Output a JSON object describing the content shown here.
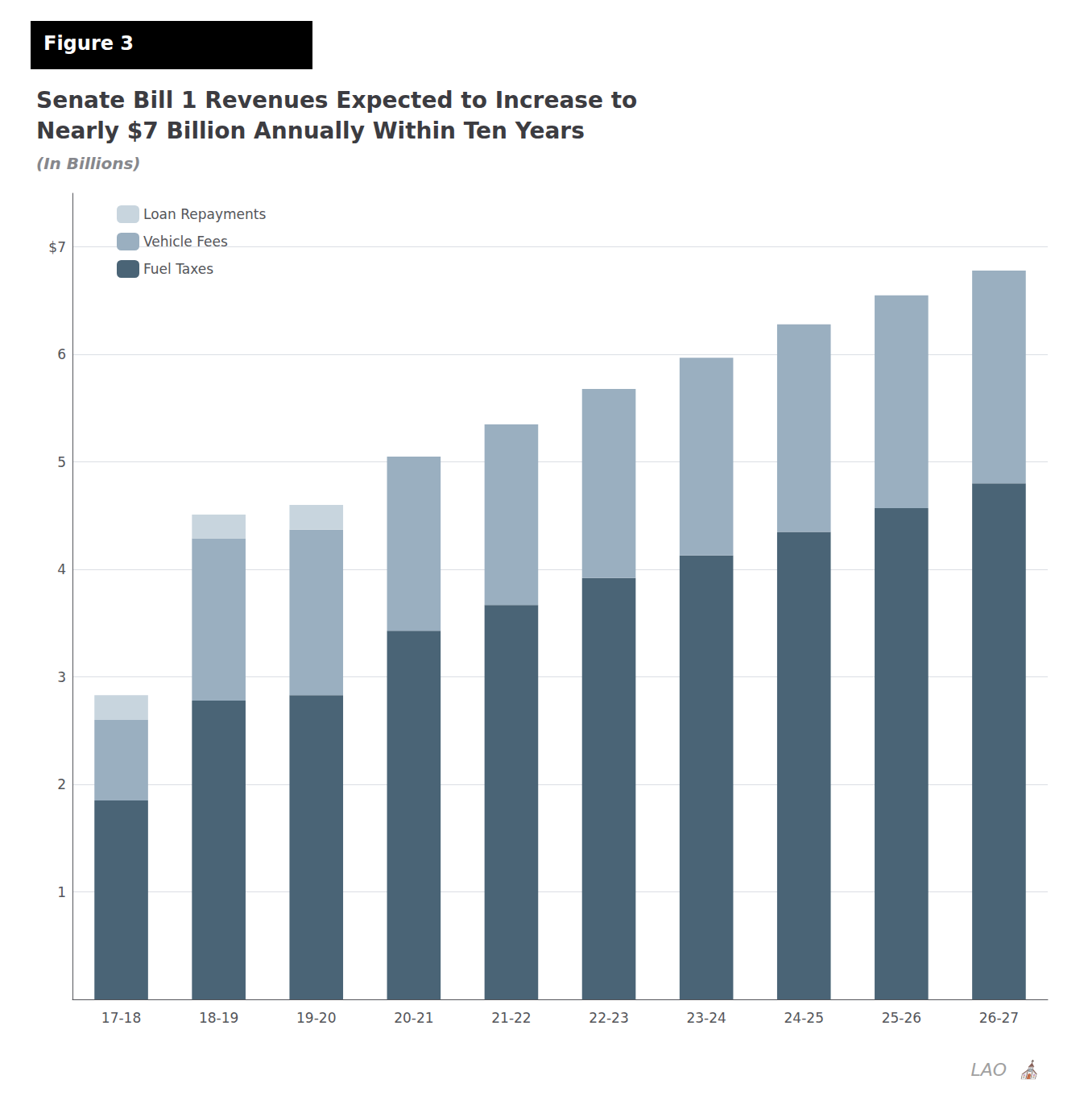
{
  "chart_data": {
    "type": "bar",
    "title": "Senate Bill 1 Revenues Expected to Increase to\nNearly $7 Billion Annually Within Ten Years",
    "subtitle": "(In Billions)",
    "annotations": [
      "Figure 3",
      "LAO",
      "⛪"
    ],
    "categories": [
      "17-18",
      "18-19",
      "19-20",
      "20-21",
      "21-22",
      "22-23",
      "23-24",
      "24-25",
      "25-26",
      "26-27"
    ],
    "series": [
      {
        "name": "Fuel Taxes",
        "color": "#4a6476",
        "values": [
          1.85,
          2.78,
          2.83,
          3.43,
          3.67,
          3.92,
          4.13,
          4.35,
          4.57,
          4.8
        ]
      },
      {
        "name": "Vehicle Fees",
        "color": "#9aafc0",
        "values": [
          0.75,
          1.51,
          1.54,
          1.62,
          1.68,
          1.76,
          1.84,
          1.93,
          1.98,
          1.98
        ]
      },
      {
        "name": "Loan Repayments",
        "color": "#c8d5de",
        "values": [
          0.23,
          0.22,
          0.23,
          0.0,
          0.0,
          0.0,
          0.0,
          0.0,
          0.0,
          0.0
        ]
      }
    ],
    "stacked": true,
    "ylim": [
      0,
      7.5
    ],
    "yticks": [
      {
        "value": 0,
        "label": ""
      },
      1,
      2,
      3,
      4,
      5,
      6,
      {
        "value": 7,
        "label": "$7"
      }
    ],
    "grid": true,
    "legend": "upper left"
  }
}
